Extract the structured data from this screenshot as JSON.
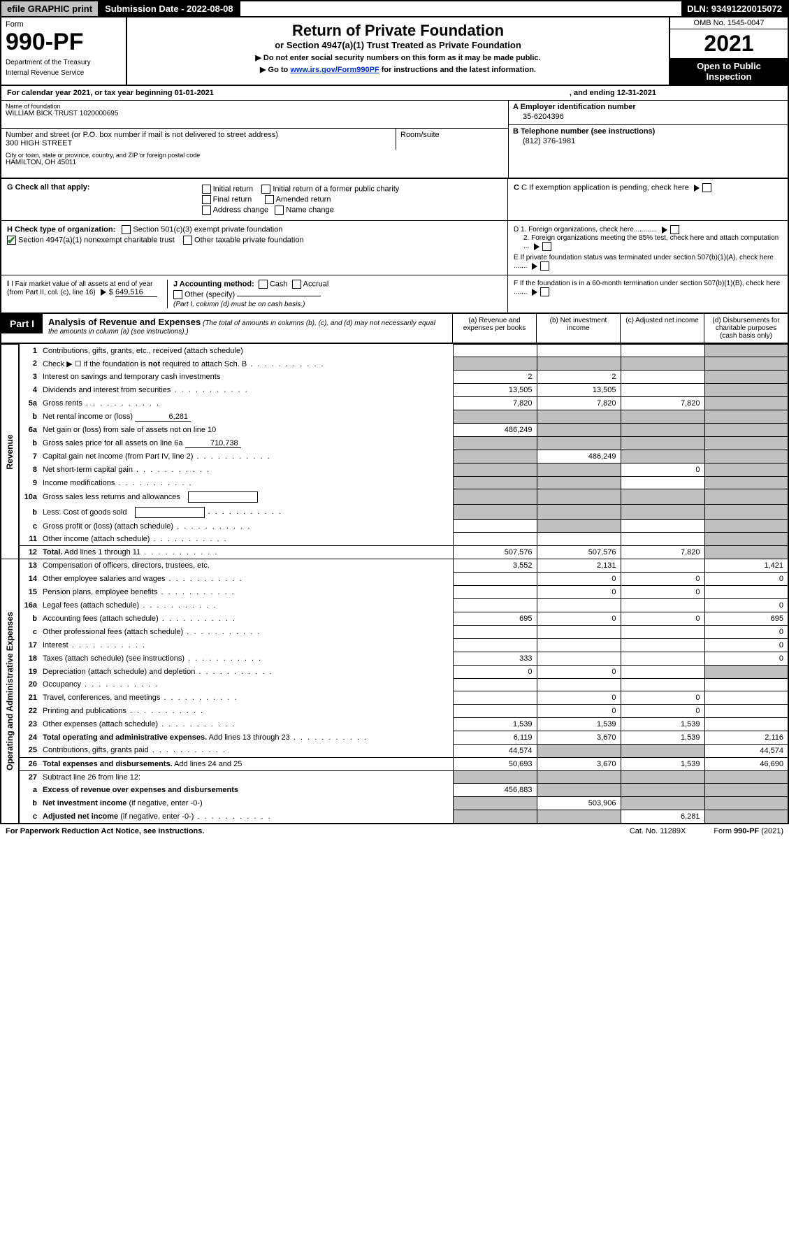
{
  "top": {
    "efile": "efile GRAPHIC print",
    "subdate_label": "Submission Date - ",
    "subdate": "2022-08-08",
    "dln_label": "DLN: ",
    "dln": "93491220015072"
  },
  "hdr": {
    "form_word": "Form",
    "form_no": "990-PF",
    "dept1": "Department of the Treasury",
    "dept2": "Internal Revenue Service",
    "title": "Return of Private Foundation",
    "subtitle": "or Section 4947(a)(1) Trust Treated as Private Foundation",
    "note1": "▶ Do not enter social security numbers on this form as it may be made public.",
    "note2a": "▶ Go to ",
    "note2_link": "www.irs.gov/Form990PF",
    "note2b": " for instructions and the latest information.",
    "omb": "OMB No. 1545-0047",
    "year": "2021",
    "inspect1": "Open to Public",
    "inspect2": "Inspection"
  },
  "cal": {
    "a": "For calendar year 2021, or tax year beginning 01-01-2021",
    "b": ", and ending 12-31-2021"
  },
  "entity": {
    "name_lab": "Name of foundation",
    "name": "WILLIAM BICK TRUST 1020000695",
    "addr_lab": "Number and street (or P.O. box number if mail is not delivered to street address)",
    "addr": "300 HIGH STREET",
    "room_lab": "Room/suite",
    "city_lab": "City or town, state or province, country, and ZIP or foreign postal code",
    "city": "HAMILTON, OH  45011",
    "A_lab": "A Employer identification number",
    "A_val": "35-6204396",
    "B_lab": "B Telephone number (see instructions)",
    "B_val": "(812) 376-1981",
    "C_lab": "C If exemption application is pending, check here",
    "D1": "D 1. Foreign organizations, check here............",
    "D2": "2. Foreign organizations meeting the 85% test, check here and attach computation ...",
    "E": "E  If private foundation status was terminated under section 507(b)(1)(A), check here .......",
    "F": "F  If the foundation is in a 60-month termination under section 507(b)(1)(B), check here .......",
    "G_lab": "G Check all that apply:",
    "G_opts": [
      "Initial return",
      "Initial return of a former public charity",
      "Final return",
      "Amended return",
      "Address change",
      "Name change"
    ],
    "H_lab": "H Check type of organization:",
    "H1": "Section 501(c)(3) exempt private foundation",
    "H2": "Section 4947(a)(1) nonexempt charitable trust",
    "H3": "Other taxable private foundation",
    "I_lab": "I Fair market value of all assets at end of year (from Part II, col. (c), line 16)",
    "I_val": "649,516",
    "J_lab": "J Accounting method:",
    "J_cash": "Cash",
    "J_accr": "Accrual",
    "J_other": "Other (specify)",
    "J_note": "(Part I, column (d) must be on cash basis.)"
  },
  "part1": {
    "tab": "Part I",
    "title": "Analysis of Revenue and Expenses",
    "title_note": " (The total of amounts in columns (b), (c), and (d) may not necessarily equal the amounts in column (a) (see instructions).)",
    "col_a": "(a)   Revenue and expenses per books",
    "col_b": "(b)   Net investment income",
    "col_c": "(c)   Adjusted net income",
    "col_d": "(d)   Disbursements for charitable purposes (cash basis only)",
    "side_rev": "Revenue",
    "side_exp": "Operating and Administrative Expenses"
  },
  "rows": [
    {
      "ln": "1",
      "desc": "Contributions, gifts, grants, etc., received (attach schedule)",
      "a": "",
      "b": "",
      "c": "",
      "d": "",
      "d_sh": true
    },
    {
      "ln": "2",
      "desc": "Check ▶ ☐ if the foundation is <b>not</b> required to attach Sch. B",
      "dotted": true,
      "b_sh": true,
      "c_sh": true,
      "d_sh": true,
      "a_sh": true
    },
    {
      "ln": "3",
      "desc": "Interest on savings and temporary cash investments",
      "a": "2",
      "b": "2",
      "c": "",
      "d": "",
      "d_sh": true
    },
    {
      "ln": "4",
      "desc": "Dividends and interest from securities",
      "dotted": true,
      "a": "13,505",
      "b": "13,505",
      "c": "",
      "d": "",
      "d_sh": true
    },
    {
      "ln": "5a",
      "desc": "Gross rents",
      "dotted": true,
      "a": "7,820",
      "b": "7,820",
      "c": "7,820",
      "d": "",
      "d_sh": true
    },
    {
      "ln": "b",
      "desc": "Net rental income or (loss)",
      "inline": "6,281",
      "a_sh": true,
      "b_sh": true,
      "c_sh": true,
      "d_sh": true
    },
    {
      "ln": "6a",
      "desc": "Net gain or (loss) from sale of assets not on line 10",
      "a": "486,249",
      "b": "",
      "c": "",
      "d": "",
      "b_sh": true,
      "c_sh": true,
      "d_sh": true
    },
    {
      "ln": "b",
      "desc": "Gross sales price for all assets on line 6a",
      "inline": "710,738",
      "a_sh": true,
      "b_sh": true,
      "c_sh": true,
      "d_sh": true
    },
    {
      "ln": "7",
      "desc": "Capital gain net income (from Part IV, line 2)",
      "dotted": true,
      "a": "",
      "b": "486,249",
      "c": "",
      "d": "",
      "a_sh": true,
      "c_sh": true,
      "d_sh": true
    },
    {
      "ln": "8",
      "desc": "Net short-term capital gain",
      "dotted": true,
      "a": "",
      "b": "",
      "c": "0",
      "d": "",
      "a_sh": true,
      "b_sh": true,
      "d_sh": true
    },
    {
      "ln": "9",
      "desc": "Income modifications",
      "dotted": true,
      "a": "",
      "b": "",
      "c": "",
      "d": "",
      "a_sh": true,
      "b_sh": true,
      "d_sh": true
    },
    {
      "ln": "10a",
      "desc": "Gross sales less returns and allowances",
      "box": true,
      "a_sh": true,
      "b_sh": true,
      "c_sh": true,
      "d_sh": true
    },
    {
      "ln": "b",
      "desc": "Less: Cost of goods sold",
      "dotted": true,
      "box": true,
      "a_sh": true,
      "b_sh": true,
      "c_sh": true,
      "d_sh": true
    },
    {
      "ln": "c",
      "desc": "Gross profit or (loss) (attach schedule)",
      "dotted": true,
      "a": "",
      "b": "",
      "c": "",
      "d": "",
      "b_sh": true,
      "d_sh": true
    },
    {
      "ln": "11",
      "desc": "Other income (attach schedule)",
      "dotted": true,
      "a": "",
      "b": "",
      "c": "",
      "d": "",
      "d_sh": true
    },
    {
      "ln": "12",
      "desc": "<b>Total.</b> Add lines 1 through 11",
      "dotted": true,
      "a": "507,576",
      "b": "507,576",
      "c": "7,820",
      "d": "",
      "d_sh": true,
      "sect": true
    },
    {
      "ln": "13",
      "desc": "Compensation of officers, directors, trustees, etc.",
      "a": "3,552",
      "b": "2,131",
      "c": "",
      "d": "1,421",
      "sect": true,
      "exp": true
    },
    {
      "ln": "14",
      "desc": "Other employee salaries and wages",
      "dotted": true,
      "a": "",
      "b": "0",
      "c": "0",
      "d": "0"
    },
    {
      "ln": "15",
      "desc": "Pension plans, employee benefits",
      "dotted": true,
      "a": "",
      "b": "0",
      "c": "0",
      "d": ""
    },
    {
      "ln": "16a",
      "desc": "Legal fees (attach schedule)",
      "dotted": true,
      "a": "",
      "b": "",
      "c": "",
      "d": "0"
    },
    {
      "ln": "b",
      "desc": "Accounting fees (attach schedule)",
      "dotted": true,
      "a": "695",
      "b": "0",
      "c": "0",
      "d": "695"
    },
    {
      "ln": "c",
      "desc": "Other professional fees (attach schedule)",
      "dotted": true,
      "a": "",
      "b": "",
      "c": "",
      "d": "0"
    },
    {
      "ln": "17",
      "desc": "Interest",
      "dotted": true,
      "a": "",
      "b": "",
      "c": "",
      "d": "0"
    },
    {
      "ln": "18",
      "desc": "Taxes (attach schedule) (see instructions)",
      "dotted": true,
      "a": "333",
      "b": "",
      "c": "",
      "d": "0"
    },
    {
      "ln": "19",
      "desc": "Depreciation (attach schedule) and depletion",
      "dotted": true,
      "a": "0",
      "b": "0",
      "c": "",
      "d": "",
      "d_sh": true
    },
    {
      "ln": "20",
      "desc": "Occupancy",
      "dotted": true,
      "a": "",
      "b": "",
      "c": "",
      "d": ""
    },
    {
      "ln": "21",
      "desc": "Travel, conferences, and meetings",
      "dotted": true,
      "a": "",
      "b": "0",
      "c": "0",
      "d": ""
    },
    {
      "ln": "22",
      "desc": "Printing and publications",
      "dotted": true,
      "a": "",
      "b": "0",
      "c": "0",
      "d": ""
    },
    {
      "ln": "23",
      "desc": "Other expenses (attach schedule)",
      "dotted": true,
      "a": "1,539",
      "b": "1,539",
      "c": "1,539",
      "d": ""
    },
    {
      "ln": "24",
      "desc": "<b>Total operating and administrative expenses.</b> Add lines 13 through 23",
      "dotted": true,
      "a": "6,119",
      "b": "3,670",
      "c": "1,539",
      "d": "2,116"
    },
    {
      "ln": "25",
      "desc": "Contributions, gifts, grants paid",
      "dotted": true,
      "a": "44,574",
      "b": "",
      "c": "",
      "d": "44,574",
      "b_sh": true,
      "c_sh": true
    },
    {
      "ln": "26",
      "desc": "<b>Total expenses and disbursements.</b> Add lines 24 and 25",
      "a": "50,693",
      "b": "3,670",
      "c": "1,539",
      "d": "46,690",
      "sect": true
    },
    {
      "ln": "27",
      "desc": "Subtract line 26 from line 12:",
      "a": "",
      "b": "",
      "c": "",
      "d": "",
      "a_sh": true,
      "b_sh": true,
      "c_sh": true,
      "d_sh": true,
      "sect": true
    },
    {
      "ln": "a",
      "desc": "<b>Excess of revenue over expenses and disbursements</b>",
      "a": "456,883",
      "b": "",
      "c": "",
      "d": "",
      "b_sh": true,
      "c_sh": true,
      "d_sh": true
    },
    {
      "ln": "b",
      "desc": "<b>Net investment income</b> (if negative, enter -0-)",
      "a": "",
      "b": "503,906",
      "c": "",
      "d": "",
      "a_sh": true,
      "c_sh": true,
      "d_sh": true
    },
    {
      "ln": "c",
      "desc": "<b>Adjusted net income</b> (if negative, enter -0-)",
      "dotted": true,
      "a": "",
      "b": "",
      "c": "6,281",
      "d": "",
      "a_sh": true,
      "b_sh": true,
      "d_sh": true
    }
  ],
  "footer": {
    "pra": "For Paperwork Reduction Act Notice, see instructions.",
    "cat": "Cat. No. 11289X",
    "form": "Form 990-PF (2021)"
  }
}
